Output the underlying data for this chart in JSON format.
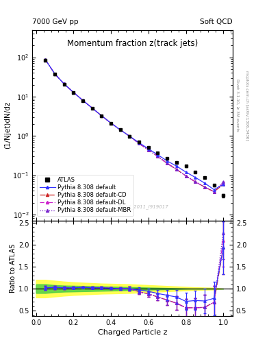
{
  "title_main": "Momentum fraction z(track jets)",
  "top_left_label": "7000 GeV pp",
  "top_right_label": "Soft QCD",
  "ylabel_main": "(1/Njet)dN/dz",
  "ylabel_ratio": "Ratio to ATLAS",
  "xlabel": "Charged Particle z",
  "watermark": "ATLAS_2011_I919017",
  "right_label_top": "Rivet 3.1.10, ≥ 3M events",
  "right_label_bot": "mcplots.cern.ch [arXiv:1306.3436]",
  "ylim_main": [
    0.007,
    500
  ],
  "ylim_ratio": [
    0.38,
    2.55
  ],
  "xlim": [
    -0.02,
    1.05
  ],
  "z_values": [
    0.05,
    0.1,
    0.15,
    0.2,
    0.25,
    0.3,
    0.35,
    0.4,
    0.45,
    0.5,
    0.55,
    0.6,
    0.65,
    0.7,
    0.75,
    0.8,
    0.85,
    0.9,
    0.95,
    1.0
  ],
  "atlas_y": [
    85.0,
    37.0,
    20.5,
    12.5,
    7.8,
    5.0,
    3.2,
    2.1,
    1.42,
    0.98,
    0.69,
    0.5,
    0.37,
    0.27,
    0.21,
    0.17,
    0.12,
    0.087,
    0.055,
    0.03
  ],
  "atlas_yerr": [
    4.0,
    1.8,
    1.0,
    0.6,
    0.4,
    0.25,
    0.16,
    0.1,
    0.07,
    0.05,
    0.035,
    0.025,
    0.018,
    0.014,
    0.011,
    0.009,
    0.006,
    0.005,
    0.004,
    0.003
  ],
  "pythia_default_y": [
    87.0,
    38.0,
    21.0,
    12.8,
    8.0,
    5.1,
    3.25,
    2.12,
    1.42,
    0.98,
    0.67,
    0.47,
    0.33,
    0.23,
    0.17,
    0.12,
    0.088,
    0.063,
    0.043,
    0.058
  ],
  "pythia_cd_y": [
    87.0,
    38.0,
    21.0,
    12.8,
    8.0,
    5.1,
    3.25,
    2.12,
    1.42,
    0.98,
    0.64,
    0.44,
    0.3,
    0.2,
    0.14,
    0.096,
    0.068,
    0.05,
    0.038,
    0.058
  ],
  "pythia_dl_y": [
    87.0,
    38.0,
    21.0,
    12.8,
    8.0,
    5.1,
    3.25,
    2.12,
    1.42,
    0.98,
    0.64,
    0.44,
    0.3,
    0.2,
    0.14,
    0.096,
    0.068,
    0.05,
    0.038,
    0.063
  ],
  "pythia_mbr_y": [
    87.0,
    38.0,
    21.0,
    12.8,
    8.0,
    5.1,
    3.25,
    2.12,
    1.42,
    0.98,
    0.64,
    0.44,
    0.3,
    0.2,
    0.14,
    0.096,
    0.068,
    0.05,
    0.038,
    0.068
  ],
  "ratio_default": [
    1.02,
    1.03,
    1.02,
    1.02,
    1.03,
    1.02,
    1.02,
    1.01,
    1.0,
    1.0,
    0.97,
    0.94,
    0.89,
    0.85,
    0.81,
    0.71,
    0.73,
    0.72,
    0.78,
    1.93
  ],
  "ratio_cd": [
    1.02,
    1.03,
    1.02,
    1.02,
    1.03,
    1.02,
    1.02,
    1.01,
    1.0,
    1.0,
    0.93,
    0.88,
    0.81,
    0.74,
    0.67,
    0.565,
    0.567,
    0.575,
    0.69,
    1.93
  ],
  "ratio_dl": [
    1.02,
    1.03,
    1.02,
    1.02,
    1.03,
    1.02,
    1.02,
    1.01,
    1.0,
    1.0,
    0.93,
    0.88,
    0.81,
    0.74,
    0.67,
    0.565,
    0.567,
    0.575,
    0.69,
    2.1
  ],
  "ratio_mbr": [
    1.02,
    1.03,
    1.02,
    1.02,
    1.03,
    1.02,
    1.02,
    1.01,
    1.0,
    1.0,
    0.93,
    0.88,
    0.81,
    0.74,
    0.67,
    0.565,
    0.567,
    0.575,
    0.69,
    2.27
  ],
  "ratio_default_err": [
    0.05,
    0.04,
    0.03,
    0.025,
    0.02,
    0.02,
    0.02,
    0.025,
    0.03,
    0.04,
    0.055,
    0.065,
    0.08,
    0.12,
    0.16,
    0.2,
    0.22,
    0.28,
    0.38,
    0.6
  ],
  "ratio_cd_err": [
    0.05,
    0.04,
    0.03,
    0.025,
    0.02,
    0.02,
    0.02,
    0.025,
    0.03,
    0.04,
    0.055,
    0.065,
    0.08,
    0.12,
    0.16,
    0.2,
    0.22,
    0.28,
    0.38,
    0.6
  ],
  "ratio_dl_err": [
    0.05,
    0.04,
    0.03,
    0.025,
    0.02,
    0.02,
    0.02,
    0.025,
    0.03,
    0.04,
    0.055,
    0.065,
    0.08,
    0.12,
    0.16,
    0.2,
    0.22,
    0.28,
    0.38,
    0.6
  ],
  "ratio_mbr_err": [
    0.05,
    0.04,
    0.03,
    0.025,
    0.02,
    0.02,
    0.02,
    0.025,
    0.03,
    0.04,
    0.055,
    0.065,
    0.08,
    0.12,
    0.16,
    0.2,
    0.22,
    0.28,
    0.38,
    0.6
  ],
  "band_x": [
    0.0,
    0.05,
    0.1,
    0.15,
    0.2,
    0.25,
    0.3,
    0.35,
    0.4,
    0.45,
    0.5,
    0.55,
    0.6,
    0.65,
    0.7,
    0.75,
    0.8,
    0.85,
    0.9,
    0.95,
    1.0
  ],
  "band_yellow_lo": [
    0.8,
    0.8,
    0.82,
    0.84,
    0.855,
    0.865,
    0.875,
    0.885,
    0.89,
    0.895,
    0.9,
    0.91,
    0.92,
    0.93,
    0.94,
    0.95,
    0.96,
    0.97,
    0.975,
    0.98,
    1.0
  ],
  "band_yellow_hi": [
    1.2,
    1.2,
    1.18,
    1.16,
    1.145,
    1.135,
    1.125,
    1.115,
    1.11,
    1.105,
    1.1,
    1.09,
    1.08,
    1.07,
    1.06,
    1.05,
    1.04,
    1.03,
    1.025,
    1.02,
    1.0
  ],
  "band_green_lo": [
    0.9,
    0.9,
    0.92,
    0.93,
    0.935,
    0.94,
    0.945,
    0.95,
    0.955,
    0.96,
    0.965,
    0.97,
    0.975,
    0.98,
    0.985,
    0.99,
    0.995,
    1.0,
    1.0,
    1.0,
    1.0
  ],
  "band_green_hi": [
    1.1,
    1.1,
    1.08,
    1.07,
    1.065,
    1.06,
    1.055,
    1.05,
    1.045,
    1.04,
    1.035,
    1.03,
    1.025,
    1.02,
    1.015,
    1.01,
    1.005,
    1.0,
    1.0,
    1.0,
    1.0
  ],
  "color_atlas": "#000000",
  "color_default": "#3333ff",
  "color_cd": "#cc2222",
  "color_dl": "#cc22cc",
  "color_mbr": "#7722cc",
  "color_yellow": "#ffff44",
  "color_green": "#44cc44",
  "legend_entries": [
    "ATLAS",
    "Pythia 8.308 default",
    "Pythia 8.308 default-CD",
    "Pythia 8.308 default-DL",
    "Pythia 8.308 default-MBR"
  ],
  "title_fontsize": 8.5,
  "label_fontsize": 7.5,
  "tick_fontsize": 7,
  "legend_fontsize": 6.0
}
